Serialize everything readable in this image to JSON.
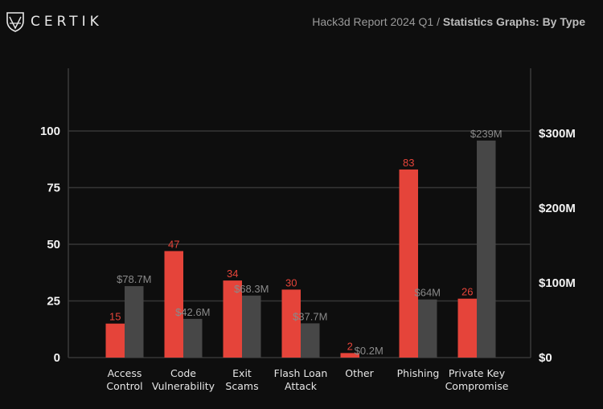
{
  "header": {
    "logo_text": "CERTIK",
    "report_title": "Hack3d Report 2024 Q1 /",
    "report_subtitle": "Statistics Graphs: By Type"
  },
  "chart_data": {
    "type": "bar",
    "categories": [
      [
        "Access",
        "Control"
      ],
      [
        "Code",
        "Vulnerability"
      ],
      [
        "Exit",
        "Scams"
      ],
      [
        "Flash Loan",
        "Attack"
      ],
      [
        "Other"
      ],
      [
        "Phishing"
      ],
      [
        "Private Key",
        "Compromise"
      ]
    ],
    "series": [
      {
        "axis": "left",
        "color": "#e5443a",
        "values": [
          15,
          47,
          34,
          30,
          2,
          83,
          26
        ],
        "labels": [
          "15",
          "47",
          "34",
          "30",
          "2",
          "83",
          "26"
        ]
      },
      {
        "axis": "right",
        "color": "#474747",
        "values": [
          78.7,
          42.6,
          68.3,
          37.7,
          0.2,
          64,
          239
        ],
        "labels": [
          "$78.7M",
          "$42.6M",
          "$68.3M",
          "$37.7M",
          "$0.2M",
          "$64M",
          "$239M"
        ]
      }
    ],
    "left_axis": {
      "ticks": [
        0,
        25,
        50,
        75,
        100
      ],
      "tick_labels": [
        "0",
        "25",
        "50",
        "75",
        "100"
      ]
    },
    "right_axis": {
      "ticks": [
        0,
        100,
        200,
        300
      ],
      "tick_labels": [
        "$0",
        "$100M",
        "$200M",
        "$300M"
      ],
      "unit": "USD millions"
    },
    "grid": true,
    "legend": "none"
  }
}
